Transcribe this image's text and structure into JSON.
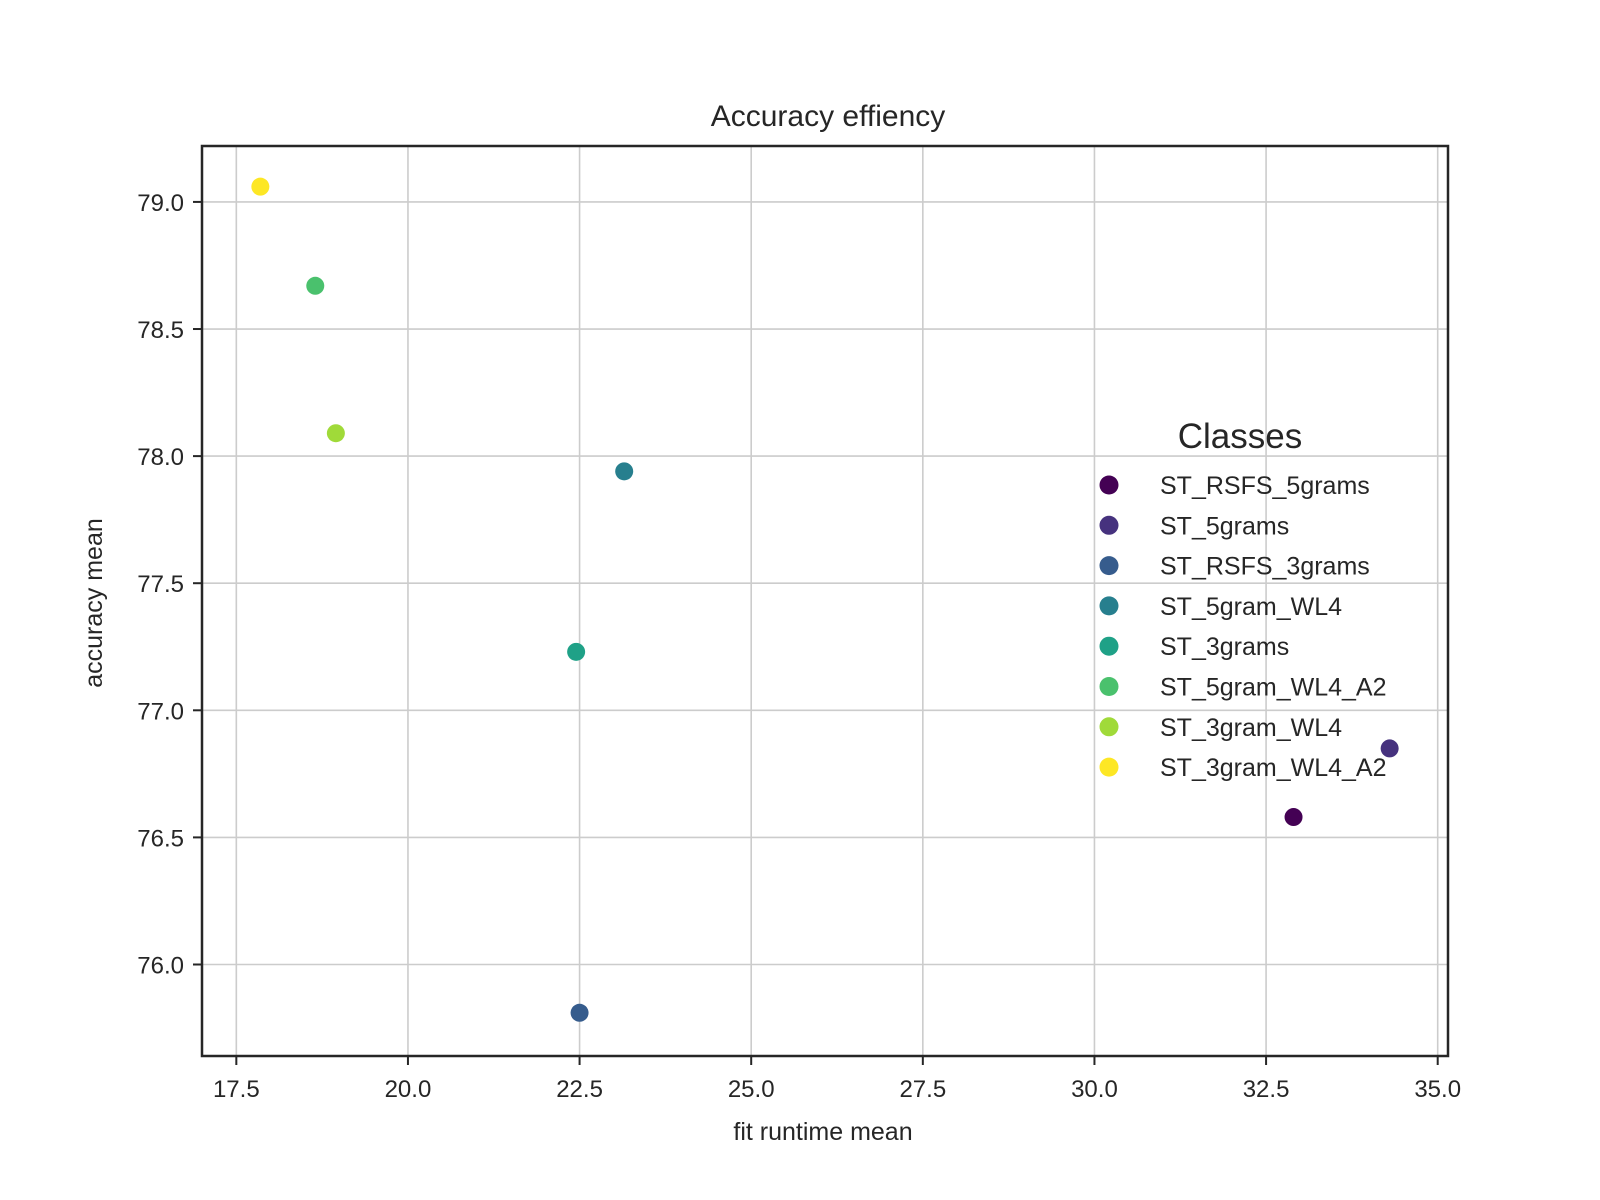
{
  "chart_data": {
    "type": "scatter",
    "title": "Accuracy effiency",
    "xlabel": "fit runtime mean",
    "ylabel": "accuracy mean",
    "xlim": [
      17.0,
      35.15
    ],
    "ylim": [
      75.64,
      79.22
    ],
    "x_ticks": [
      "17.5",
      "20.0",
      "22.5",
      "25.0",
      "27.5",
      "30.0",
      "32.5",
      "35.0"
    ],
    "y_ticks": [
      "76.0",
      "76.5",
      "77.0",
      "77.5",
      "78.0",
      "78.5",
      "79.0"
    ],
    "grid": true,
    "legend_title": "Classes",
    "legend_position": "center-right",
    "series": [
      {
        "name": "ST_RSFS_5grams",
        "x": 32.9,
        "y": 76.58,
        "color": "#440154"
      },
      {
        "name": "ST_5grams",
        "x": 34.3,
        "y": 76.85,
        "color": "#46327e"
      },
      {
        "name": "ST_RSFS_3grams",
        "x": 22.5,
        "y": 75.81,
        "color": "#365c8d"
      },
      {
        "name": "ST_5gram_WL4",
        "x": 23.15,
        "y": 77.94,
        "color": "#277f8e"
      },
      {
        "name": "ST_3grams",
        "x": 22.45,
        "y": 77.23,
        "color": "#1fa187"
      },
      {
        "name": "ST_5gram_WL4_A2",
        "x": 18.65,
        "y": 78.67,
        "color": "#4ac16d"
      },
      {
        "name": "ST_3gram_WL4",
        "x": 18.95,
        "y": 78.09,
        "color": "#a0da39"
      },
      {
        "name": "ST_3gram_WL4_A2",
        "x": 17.85,
        "y": 79.06,
        "color": "#fde725"
      }
    ]
  }
}
